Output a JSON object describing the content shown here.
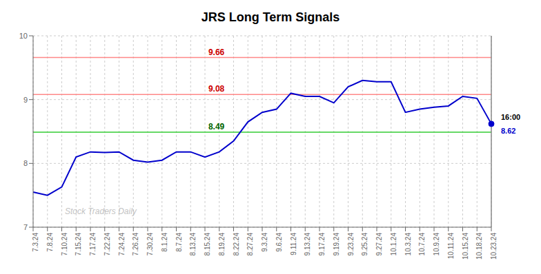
{
  "chart_data": {
    "type": "line",
    "title": "JRS Long Term Signals",
    "categories": [
      "7.3.24",
      "7.8.24",
      "7.10.24",
      "7.15.24",
      "7.17.24",
      "7.22.24",
      "7.24.24",
      "7.26.24",
      "7.30.24",
      "8.1.24",
      "8.7.24",
      "8.13.24",
      "8.15.24",
      "8.19.24",
      "8.22.24",
      "8.27.24",
      "9.3.24",
      "9.6.24",
      "9.11.24",
      "9.13.24",
      "9.17.24",
      "9.19.24",
      "9.23.24",
      "9.25.24",
      "9.27.24",
      "10.1.24",
      "10.3.24",
      "10.7.24",
      "10.9.24",
      "10.11.24",
      "10.15.24",
      "10.18.24",
      "10.23.24"
    ],
    "values": [
      7.55,
      7.5,
      7.63,
      8.1,
      8.18,
      8.17,
      8.18,
      8.05,
      8.02,
      8.05,
      8.18,
      8.18,
      8.1,
      8.18,
      8.35,
      8.65,
      8.8,
      8.85,
      9.1,
      9.05,
      9.05,
      8.95,
      9.2,
      9.3,
      9.28,
      9.28,
      8.8,
      8.85,
      8.88,
      8.9,
      9.05,
      9.02,
      8.62
    ],
    "color": "#0000cc",
    "ylim": [
      7.0,
      10.0
    ],
    "yticks": [
      7,
      8,
      9,
      10
    ],
    "grid": true,
    "reference_lines": [
      {
        "value": 9.66,
        "label": "9.66",
        "color": "#ff8888",
        "label_color": "#cc0000"
      },
      {
        "value": 9.08,
        "label": "9.08",
        "color": "#ff8888",
        "label_color": "#cc0000"
      },
      {
        "value": 8.49,
        "label": "8.49",
        "color": "#33cc33",
        "label_color": "#006600"
      }
    ],
    "vline": {
      "category": "10.23.24",
      "color": "#888888"
    },
    "annotations": [
      {
        "text": "16:00",
        "color": "#000000"
      },
      {
        "text": "8.62",
        "color": "#0000cc"
      }
    ],
    "watermark": "Stock Traders Daily"
  }
}
